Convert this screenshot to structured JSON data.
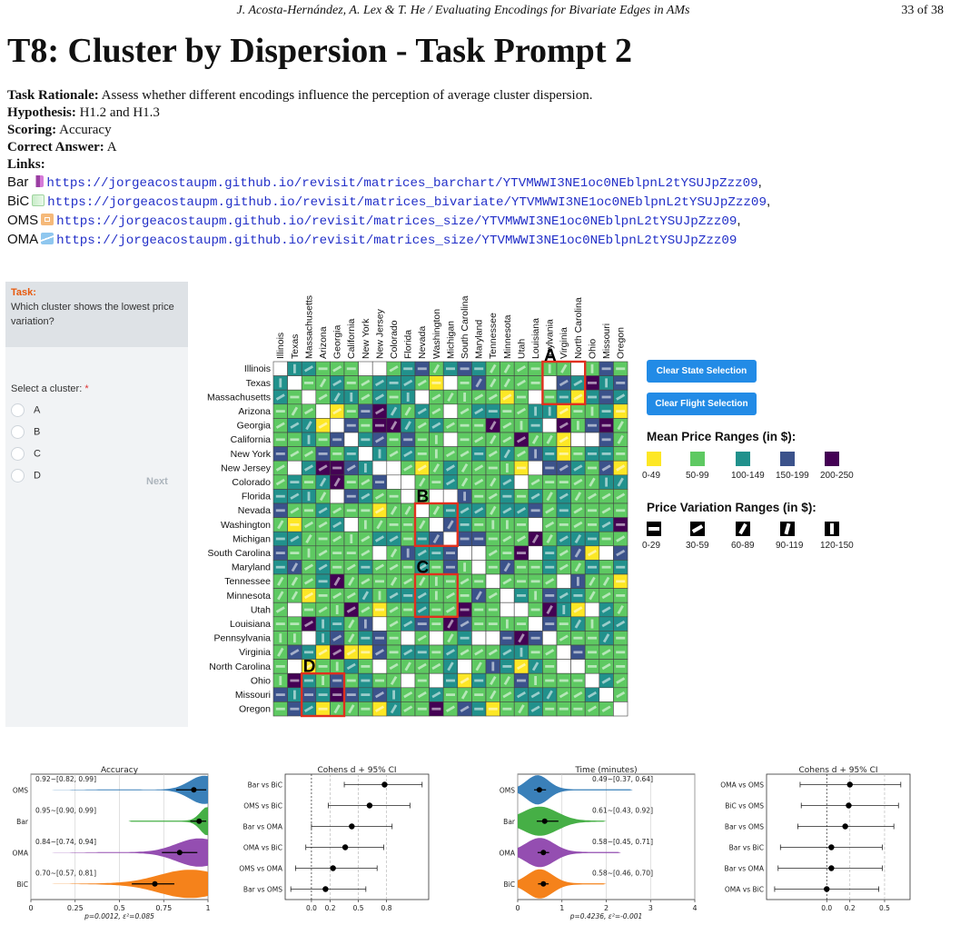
{
  "running_header": {
    "authors_title": "J. Acosta-Hernández, A. Lex & T. He / Evaluating Encodings for Bivariate Edges in AMs",
    "page": "33 of 38"
  },
  "title": "T8: Cluster by Dispersion - Task Prompt 2",
  "meta": {
    "rationale_label": "Task Rationale:",
    "rationale": "Assess whether different encodings influence the perception of average cluster dispersion.",
    "hypothesis_label": "Hypothesis:",
    "hypothesis": "H1.2 and H1.3",
    "scoring_label": "Scoring:",
    "scoring": "Accuracy",
    "answer_label": "Correct Answer:",
    "answer": "A",
    "links_label": "Links:"
  },
  "links": [
    {
      "name": "Bar",
      "url": "https://jorgeacostaupm.github.io/revisit/matrices_barchart/YTVMWWI3NE1oc0NEblpnL2tYSUJpZzz09",
      "sep": ","
    },
    {
      "name": "BiC",
      "url": "https://jorgeacostaupm.github.io/revisit/matrices_bivariate/YTVMWWI3NE1oc0NEblpnL2tYSUJpZzz09",
      "sep": ","
    },
    {
      "name": "OMS",
      "url": "https://jorgeacostaupm.github.io/revisit/matrices_size/YTVMWWI3NE1oc0NEblpnL2tYSUJpZzz09",
      "sep": ","
    },
    {
      "name": "OMA",
      "url": "https://jorgeacostaupm.github.io/revisit/matrices_size/YTVMWWI3NE1oc0NEblpnL2tYSUJpZzz09",
      "sep": ""
    }
  ],
  "task_panel": {
    "task_label": "Task:",
    "question": "Which cluster shows the lowest price variation?",
    "select_label": "Select a cluster:",
    "required_mark": "*",
    "options": [
      "A",
      "B",
      "C",
      "D"
    ],
    "next_label": "Next"
  },
  "matrix": {
    "states": [
      "Illinois",
      "Texas",
      "Massachusetts",
      "Arizona",
      "Georgia",
      "California",
      "New York",
      "New Jersey",
      "Colorado",
      "Florida",
      "Nevada",
      "Washington",
      "Michigan",
      "South Carolina",
      "Maryland",
      "Tennessee",
      "Minnesota",
      "Utah",
      "Louisiana",
      "Pennsylvania",
      "Virginia",
      "North Carolina",
      "Ohio",
      "Missouri",
      "Oregon"
    ],
    "column_labels": [
      "Illinois",
      "Texas",
      "Massachusetts",
      "Arizona",
      "Georgia",
      "California",
      "New York",
      "New Jersey",
      "Colorado",
      "Florida",
      "Nevada",
      "Washington",
      "Michigan",
      "South Carolina",
      "Maryland",
      "Tennessee",
      "Minnesota",
      "Utah",
      "Louisiana",
      "nsylvania",
      "Virginia",
      "North Carolina",
      "Ohio",
      "Missouri",
      "Oregon"
    ],
    "cluster_labels": [
      "A",
      "B",
      "C",
      "D"
    ],
    "colors": {
      "empty": "#ffffff",
      "c0": "#fde725",
      "c1": "#5ec962",
      "c2": "#21918c",
      "c3": "#3b528b",
      "c4": "#440154",
      "highlight": "#e0301e"
    }
  },
  "controls": {
    "clear_state": "Clear State Selection",
    "clear_flight": "Clear Flight Selection",
    "button_color": "#228be6"
  },
  "legend": {
    "mean_title": "Mean Price Ranges (in $):",
    "mean_ranges": [
      "0-49",
      "50-99",
      "100-149",
      "150-199",
      "200-250"
    ],
    "mean_colors": [
      "#fde725",
      "#5ec962",
      "#21918c",
      "#3b528b",
      "#440154"
    ],
    "var_title": "Price Variation Ranges (in $):",
    "var_ranges": [
      "0-29",
      "30-59",
      "60-89",
      "90-119",
      "120-150"
    ]
  },
  "charts": {
    "accuracy": {
      "title": "Accuracy",
      "categories": [
        "OMS",
        "Bar",
        "OMA",
        "BiC"
      ],
      "ticks": [
        "0",
        "0.25",
        "0.5",
        "0.75",
        "1"
      ],
      "annotations": [
        "0.92~[0.82, 0.99]",
        "0.95~[0.90, 0.99]",
        "0.84~[0.74, 0.94]",
        "0.70~[0.57, 0.81]"
      ],
      "footer": "p=0.0012, ε²=0.085",
      "colors": [
        "#2f79b5",
        "#3cab3c",
        "#8e44ad",
        "#f47b0f"
      ]
    },
    "time": {
      "title": "Time (minutes)",
      "categories": [
        "OMS",
        "Bar",
        "OMA",
        "BiC"
      ],
      "ticks": [
        "0",
        "1",
        "2",
        "3",
        "4"
      ],
      "annotations": [
        "0.49~[0.37, 0.64]",
        "0.61~[0.43, 0.92]",
        "0.58~[0.45, 0.71]",
        "0.58~[0.46, 0.70]"
      ],
      "footer": "p=0.4236, ε²=-0.001",
      "colors": [
        "#2f79b5",
        "#3cab3c",
        "#8e44ad",
        "#f47b0f"
      ]
    },
    "cohens_acc": {
      "title": "Cohens d + 95% CI",
      "labels": [
        "Bar vs BiC",
        "OMS vs BiC",
        "Bar vs OMA",
        "OMA vs BiC",
        "OMS vs OMA",
        "Bar vs OMS"
      ],
      "ticks": [
        "0.0",
        "0.2",
        "0.5",
        "0.8"
      ]
    },
    "cohens_time": {
      "title": "Cohens d + 95% CI",
      "labels": [
        "OMA vs OMS",
        "BiC vs OMS",
        "Bar vs OMS",
        "Bar vs BiC",
        "Bar vs OMA",
        "OMA vs BiC"
      ],
      "ticks": [
        "0.0",
        "0.2",
        "0.5"
      ]
    }
  },
  "chart_data": [
    {
      "type": "violin",
      "title": "Accuracy",
      "categories": [
        "OMS",
        "Bar",
        "OMA",
        "BiC"
      ],
      "means": [
        0.92,
        0.95,
        0.84,
        0.7
      ],
      "ci_low": [
        0.82,
        0.9,
        0.74,
        0.57
      ],
      "ci_high": [
        0.99,
        0.99,
        0.94,
        0.81
      ],
      "xlim": [
        0,
        1
      ]
    },
    {
      "type": "forest",
      "title": "Cohens d + 95% CI",
      "labels": [
        "Bar vs BiC",
        "OMS vs BiC",
        "Bar vs OMA",
        "OMA vs BiC",
        "OMS vs OMA",
        "Bar vs OMS"
      ],
      "d": [
        0.78,
        0.62,
        0.43,
        0.36,
        0.23,
        0.15
      ],
      "ci_low": [
        0.35,
        0.18,
        0.0,
        -0.06,
        -0.17,
        -0.22
      ],
      "ci_high": [
        1.18,
        1.05,
        0.86,
        0.77,
        0.7,
        0.58
      ],
      "xticks": [
        0.0,
        0.2,
        0.5,
        0.8
      ]
    },
    {
      "type": "violin",
      "title": "Time (minutes)",
      "categories": [
        "OMS",
        "Bar",
        "OMA",
        "BiC"
      ],
      "means": [
        0.49,
        0.61,
        0.58,
        0.58
      ],
      "ci_low": [
        0.37,
        0.43,
        0.45,
        0.46
      ],
      "ci_high": [
        0.64,
        0.92,
        0.71,
        0.7
      ],
      "xlim": [
        0,
        4
      ]
    },
    {
      "type": "forest",
      "title": "Cohens d + 95% CI",
      "labels": [
        "OMA vs OMS",
        "BiC vs OMS",
        "Bar vs OMS",
        "Bar vs BiC",
        "Bar vs OMA",
        "OMA vs BiC"
      ],
      "d": [
        0.2,
        0.19,
        0.16,
        0.04,
        0.04,
        0.0
      ],
      "ci_low": [
        -0.23,
        -0.22,
        -0.25,
        -0.4,
        -0.42,
        -0.45
      ],
      "ci_high": [
        0.64,
        0.62,
        0.58,
        0.48,
        0.48,
        0.45
      ],
      "xticks": [
        0.0,
        0.2,
        0.5
      ]
    }
  ]
}
